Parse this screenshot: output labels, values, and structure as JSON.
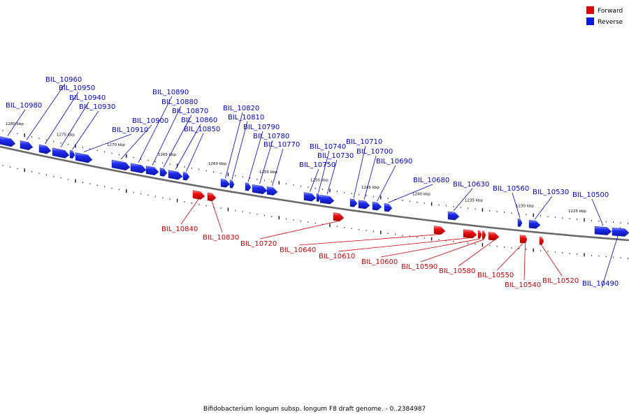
{
  "legend": {
    "forward": "Forward",
    "reverse": "Reverse"
  },
  "colors": {
    "forward": "#e00000",
    "reverse": "#0a1ae6",
    "forward_label": "#cc0000",
    "reverse_label": "#0000cc",
    "backbone": "#666666"
  },
  "caption": "Bifidobacterium longum subsp. longum F8 draft genome. - 0..2384987",
  "scale_labels": [
    "1280 kbp",
    "1275 kbp",
    "1270 kbp",
    "1265 kbp",
    "1260 kbp",
    "1255 kbp",
    "1250 kbp",
    "1245 kbp",
    "1240 kbp",
    "1235 kbp",
    "1230 kbp",
    "1225 kbp"
  ],
  "genes": [
    {
      "name": "BIL_10980",
      "strand": "reverse"
    },
    {
      "name": "BIL_10960",
      "strand": "reverse"
    },
    {
      "name": "BIL_10950",
      "strand": "reverse"
    },
    {
      "name": "BIL_10940",
      "strand": "reverse"
    },
    {
      "name": "BIL_10930",
      "strand": "reverse"
    },
    {
      "name": "BIL_10910",
      "strand": "reverse"
    },
    {
      "name": "BIL_10900",
      "strand": "reverse"
    },
    {
      "name": "BIL_10890",
      "strand": "reverse"
    },
    {
      "name": "BIL_10880",
      "strand": "reverse"
    },
    {
      "name": "BIL_10870",
      "strand": "reverse"
    },
    {
      "name": "BIL_10860",
      "strand": "reverse"
    },
    {
      "name": "BIL_10850",
      "strand": "reverse"
    },
    {
      "name": "BIL_10840",
      "strand": "forward"
    },
    {
      "name": "BIL_10830",
      "strand": "forward"
    },
    {
      "name": "BIL_10820",
      "strand": "reverse"
    },
    {
      "name": "BIL_10810",
      "strand": "reverse"
    },
    {
      "name": "BIL_10790",
      "strand": "reverse"
    },
    {
      "name": "BIL_10780",
      "strand": "reverse"
    },
    {
      "name": "BIL_10770",
      "strand": "reverse"
    },
    {
      "name": "BIL_10750",
      "strand": "reverse"
    },
    {
      "name": "BIL_10740",
      "strand": "reverse"
    },
    {
      "name": "BIL_10730",
      "strand": "reverse"
    },
    {
      "name": "BIL_10720",
      "strand": "forward"
    },
    {
      "name": "BIL_10710",
      "strand": "reverse"
    },
    {
      "name": "BIL_10700",
      "strand": "reverse"
    },
    {
      "name": "BIL_10690",
      "strand": "reverse"
    },
    {
      "name": "BIL_10680",
      "strand": "reverse"
    },
    {
      "name": "BIL_10640",
      "strand": "forward"
    },
    {
      "name": "BIL_10630",
      "strand": "reverse"
    },
    {
      "name": "BIL_10610",
      "strand": "forward"
    },
    {
      "name": "BIL_10600",
      "strand": "forward"
    },
    {
      "name": "BIL_10590",
      "strand": "forward"
    },
    {
      "name": "BIL_10580",
      "strand": "forward"
    },
    {
      "name": "BIL_10560",
      "strand": "reverse"
    },
    {
      "name": "BIL_10550",
      "strand": "forward"
    },
    {
      "name": "BIL_10540",
      "strand": "forward"
    },
    {
      "name": "BIL_10530",
      "strand": "reverse"
    },
    {
      "name": "BIL_10520",
      "strand": "forward"
    },
    {
      "name": "BIL_10500",
      "strand": "reverse"
    },
    {
      "name": "BIL_10490",
      "strand": "reverse"
    }
  ]
}
